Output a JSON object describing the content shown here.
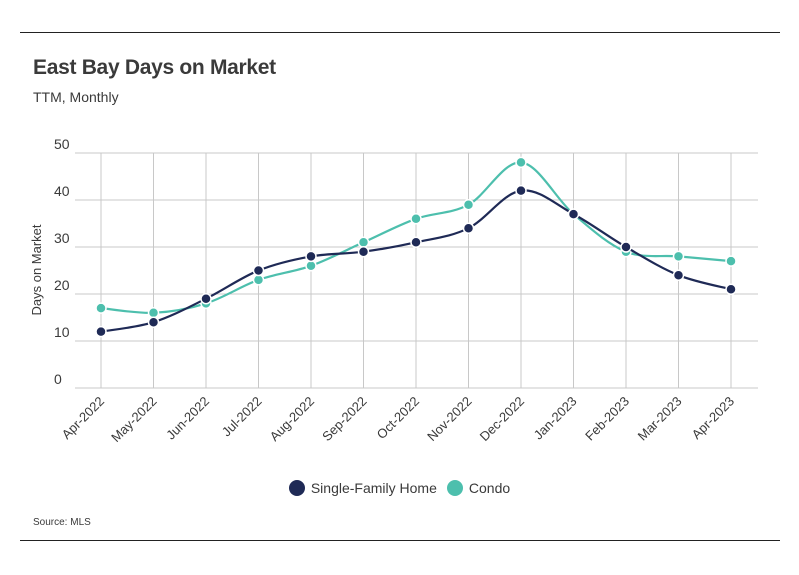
{
  "header": {
    "title": "East Bay Days on Market",
    "subtitle": "TTM, Monthly"
  },
  "footer": {
    "source": "Source: MLS"
  },
  "colors": {
    "single_family": "#1f2a56",
    "condo": "#4dbfad",
    "grid": "#c8c8c8",
    "axis_text": "#3a3a3a"
  },
  "chart_data": {
    "type": "line",
    "title": "East Bay Days on Market",
    "subtitle": "TTM, Monthly",
    "xlabel": "",
    "ylabel": "Days on Market",
    "ylim": [
      0,
      50
    ],
    "yticks": [
      0,
      10,
      20,
      30,
      40,
      50
    ],
    "grid": true,
    "legend_position": "bottom-center",
    "categories": [
      "Apr-2022",
      "May-2022",
      "Jun-2022",
      "Jul-2022",
      "Aug-2022",
      "Sep-2022",
      "Oct-2022",
      "Nov-2022",
      "Dec-2022",
      "Jan-2023",
      "Feb-2023",
      "Mar-2023",
      "Apr-2023"
    ],
    "series": [
      {
        "name": "Single-Family Home",
        "color": "#1f2a56",
        "values": [
          12,
          14,
          19,
          25,
          28,
          29,
          31,
          34,
          42,
          37,
          30,
          24,
          21
        ]
      },
      {
        "name": "Condo",
        "color": "#4dbfad",
        "values": [
          17,
          16,
          18,
          23,
          26,
          31,
          36,
          39,
          48,
          37,
          29,
          28,
          27
        ]
      }
    ]
  }
}
